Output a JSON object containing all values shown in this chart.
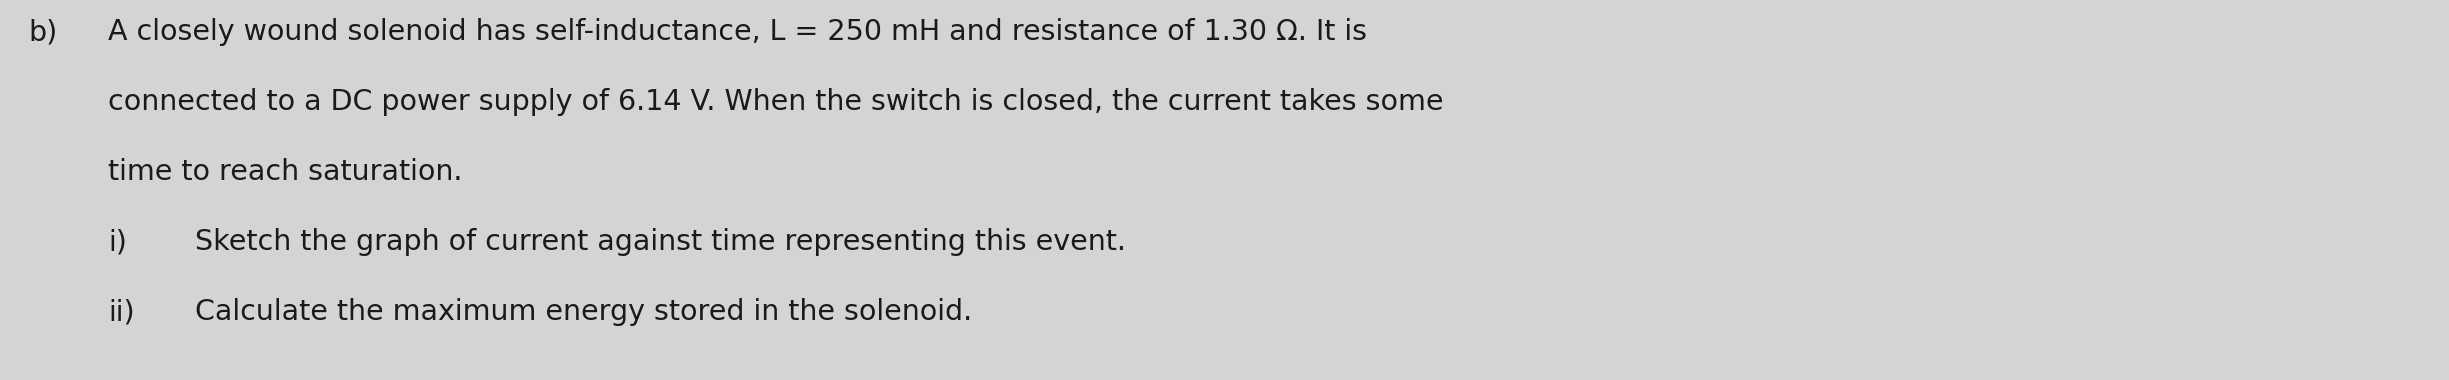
{
  "background_color": "#d4d4d4",
  "text_color": "#1a1a1a",
  "font_size": 20.5,
  "font_family": "DejaVu Sans",
  "label_b": "b)",
  "line1": "A closely wound solenoid has self-inductance, L = 250 mH and resistance of 1.30 Ω. It is",
  "line2": "connected to a DC power supply of 6.14 V. When the switch is closed, the current takes some",
  "line3": "time to reach saturation.",
  "line4_prefix": "i)",
  "line4_text": "Sketch the graph of current against time representing this event.",
  "line5_prefix": "ii)",
  "line5_text": "Calculate the maximum energy stored in the solenoid.",
  "fig_width": 24.49,
  "fig_height": 3.8,
  "dpi": 100
}
